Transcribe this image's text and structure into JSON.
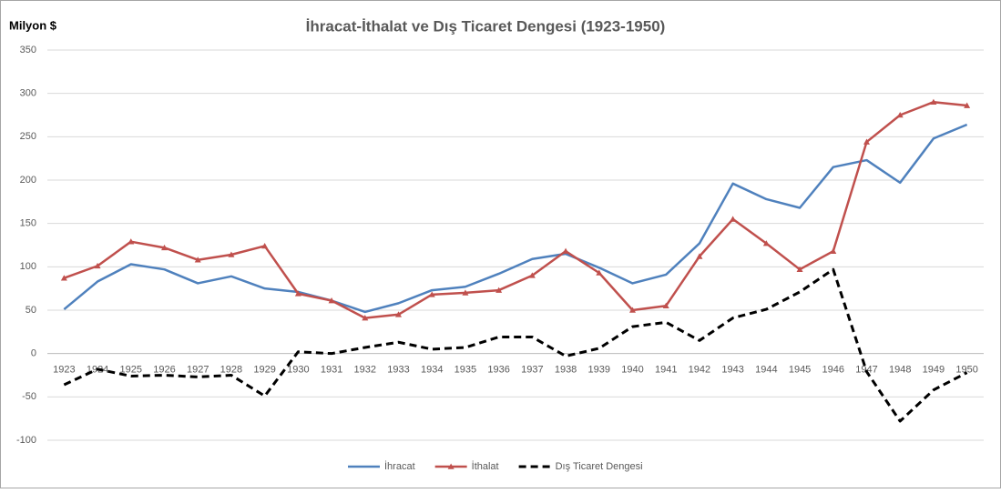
{
  "chart_data": {
    "type": "line",
    "title": "İhracat-İthalat ve Dış Ticaret Dengesi (1923-1950)",
    "y_label": "Milyon $",
    "categories": [
      "1923",
      "1924",
      "1925",
      "1926",
      "1927",
      "1928",
      "1929",
      "1930",
      "1931",
      "1932",
      "1933",
      "1934",
      "1935",
      "1936",
      "1937",
      "1938",
      "1939",
      "1940",
      "1941",
      "1942",
      "1943",
      "1944",
      "1945",
      "1946",
      "1947",
      "1948",
      "1949",
      "1950"
    ],
    "series": [
      {
        "name": "İhracat",
        "color": "#4f81bd",
        "values": [
          51,
          83,
          103,
          97,
          81,
          89,
          75,
          71,
          61,
          48,
          58,
          73,
          77,
          92,
          109,
          115,
          99,
          81,
          91,
          127,
          196,
          178,
          168,
          215,
          223,
          197,
          248,
          264
        ]
      },
      {
        "name": "İthalat",
        "color": "#c0504d",
        "marker": "triangle",
        "values": [
          87,
          101,
          129,
          122,
          108,
          114,
          124,
          69,
          61,
          41,
          45,
          68,
          70,
          73,
          90,
          118,
          93,
          50,
          55,
          112,
          155,
          127,
          97,
          118,
          244,
          275,
          290,
          286
        ]
      },
      {
        "name": "Dış Ticaret Dengesi",
        "color": "#000000",
        "dashed": true,
        "values": [
          -36,
          -18,
          -26,
          -25,
          -27,
          -25,
          -49,
          2,
          0,
          7,
          13,
          5,
          7,
          19,
          19,
          -3,
          6,
          31,
          36,
          15,
          41,
          51,
          71,
          97,
          -21,
          -78,
          -42,
          -22
        ]
      }
    ],
    "ylim": [
      -100,
      350
    ],
    "yticks": [
      -100,
      -50,
      0,
      50,
      100,
      150,
      200,
      250,
      300,
      350
    ],
    "grid": true,
    "legend": "bottom"
  }
}
